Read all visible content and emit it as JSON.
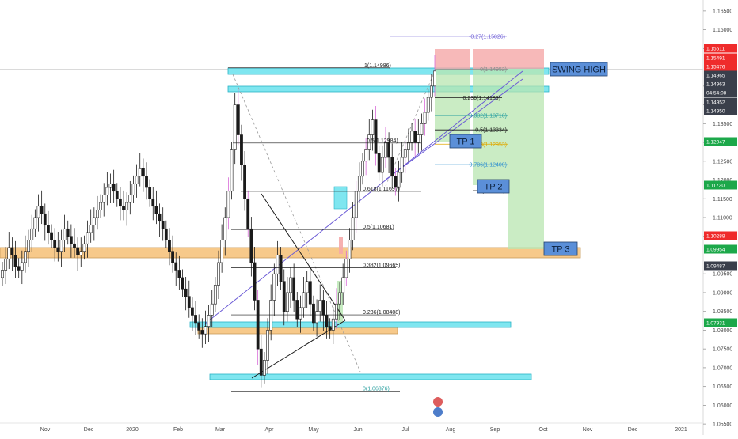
{
  "chart_data": {
    "type": "candlestick",
    "instrument": "EURUSD",
    "timeframe": "1D",
    "ylim": [
      1.0525,
      1.1675
    ],
    "price_axis_ticks": [
      1.165,
      1.16,
      1.155,
      1.145,
      1.14,
      1.135,
      1.13,
      1.125,
      1.12,
      1.115,
      1.11,
      1.105,
      1.095,
      1.09,
      1.085,
      1.08,
      1.075,
      1.07,
      1.065,
      1.06,
      1.055
    ],
    "time_axis_labels": [
      "Nov",
      "Dec",
      "2020",
      "Feb",
      "Mar",
      "Apr",
      "May",
      "Jun",
      "Jul",
      "Aug",
      "Sep",
      "Oct",
      "Nov",
      "Dec",
      "2021"
    ],
    "price_tags": [
      {
        "value": "1.15511",
        "color": "#ef2b2b"
      },
      {
        "value": "1.15491",
        "color": "#ef2b2b"
      },
      {
        "value": "1.15476",
        "color": "#ef2b2b"
      },
      {
        "value": "1.14965",
        "color": "#3a3f4b"
      },
      {
        "value": "1.14963",
        "color": "#3a3f4b"
      },
      {
        "value": "04:54:08",
        "color": "#3a3f4b"
      },
      {
        "value": "1.14952",
        "color": "#3a3f4b"
      },
      {
        "value": "1.14950",
        "color": "#3a3f4b"
      },
      {
        "value": "1.12947",
        "color": "#1ca84a"
      },
      {
        "value": "1.11730",
        "color": "#1ca84a"
      },
      {
        "value": "1.10288",
        "color": "#ef2b2b"
      },
      {
        "value": "1.09954",
        "color": "#1ca84a"
      },
      {
        "value": "1.09487",
        "color": "#3a3f4b"
      },
      {
        "value": "1.07931",
        "color": "#1ca84a"
      }
    ],
    "fib_retracement_a": [
      {
        "text": "-0.27(1.15826)",
        "value": 1.15826,
        "color": "#6b5bd6"
      },
      {
        "text": "0(1.14952)",
        "value": 1.14952,
        "color": "#8c8c8c"
      },
      {
        "text": "0.236(1.14189)",
        "value": 1.14189,
        "color": "#1a1a1a"
      },
      {
        "text": "0.382(1.13716)",
        "value": 1.13716,
        "color": "#2aa0a0"
      },
      {
        "text": "0.5(1.13334)",
        "value": 1.13334,
        "color": "#1a1a1a"
      },
      {
        "text": "0.618(1.12953)",
        "value": 1.12953,
        "color": "#e0a800"
      },
      {
        "text": "0.786(1.12409)",
        "value": 1.12409,
        "color": "#2f8fd0"
      },
      {
        "text": "1(1.11716)",
        "value": 1.11716,
        "color": "#1a1a1a"
      }
    ],
    "fib_retracement_b": [
      {
        "text": "1(1.14986)",
        "value": 1.14986,
        "color": "#1a1a1a"
      },
      {
        "text": "0.5(1.12984)",
        "value": 1.12984,
        "color": "#1a1a1a"
      },
      {
        "text": "0.618(1.11697)",
        "value": 1.11697,
        "color": "#1a1a1a"
      },
      {
        "text": "0.5(1.10681)",
        "value": 1.10681,
        "color": "#1a1a1a"
      },
      {
        "text": "0.382(1.09665)",
        "value": 1.09665,
        "color": "#1a1a1a"
      },
      {
        "text": "0.236(1.08408)",
        "value": 1.08408,
        "color": "#1a1a1a"
      },
      {
        "text": "0(1.06376)",
        "value": 1.06376,
        "color": "#2aa0a0"
      }
    ],
    "annotations": [
      "SWING HIGH",
      "TP 1",
      "TP 2",
      "TP 3"
    ],
    "zones": {
      "support_zone_color": "#f7c98a",
      "resistance_zone_color": "#7fe6f0",
      "target_zone_color": "#b8e6b0",
      "stop_zone_color": "#f5a8a8"
    },
    "colors": {
      "up_candle": "#ffffff",
      "down_candle": "#1a1a1a",
      "wick_highlight": "#d86bd8",
      "trendline": "#6b5bd6",
      "axis_text": "#4a4a4a"
    },
    "closes": [
      1.096,
      1.099,
      1.102,
      1.1,
      1.097,
      1.096,
      1.098,
      1.101,
      1.104,
      1.107,
      1.11,
      1.113,
      1.111,
      1.108,
      1.106,
      1.104,
      1.102,
      1.101,
      1.104,
      1.107,
      1.105,
      1.103,
      1.102,
      1.1,
      1.101,
      1.103,
      1.106,
      1.108,
      1.11,
      1.112,
      1.114,
      1.116,
      1.118,
      1.119,
      1.117,
      1.115,
      1.113,
      1.112,
      1.114,
      1.116,
      1.119,
      1.121,
      1.123,
      1.121,
      1.118,
      1.115,
      1.113,
      1.111,
      1.109,
      1.107,
      1.104,
      1.101,
      1.098,
      1.096,
      1.094,
      1.091,
      1.089,
      1.086,
      1.084,
      1.082,
      1.08,
      1.079,
      1.081,
      1.084,
      1.087,
      1.092,
      1.098,
      1.104,
      1.11,
      1.117,
      1.128,
      1.14,
      1.132,
      1.124,
      1.115,
      1.107,
      1.098,
      1.088,
      1.075,
      1.068,
      1.072,
      1.08,
      1.088,
      1.095,
      1.1,
      1.093,
      1.085,
      1.09,
      1.094,
      1.088,
      1.083,
      1.086,
      1.09,
      1.093,
      1.087,
      1.082,
      1.085,
      1.088,
      1.084,
      1.081,
      1.08,
      1.083,
      1.087,
      1.09,
      1.094,
      1.099,
      1.104,
      1.11,
      1.117,
      1.121,
      1.125,
      1.128,
      1.132,
      1.136,
      1.127,
      1.122,
      1.126,
      1.13,
      1.126,
      1.121,
      1.118,
      1.122,
      1.126,
      1.128,
      1.13,
      1.133,
      1.13,
      1.132,
      1.135,
      1.138,
      1.142,
      1.145,
      1.149
    ]
  }
}
